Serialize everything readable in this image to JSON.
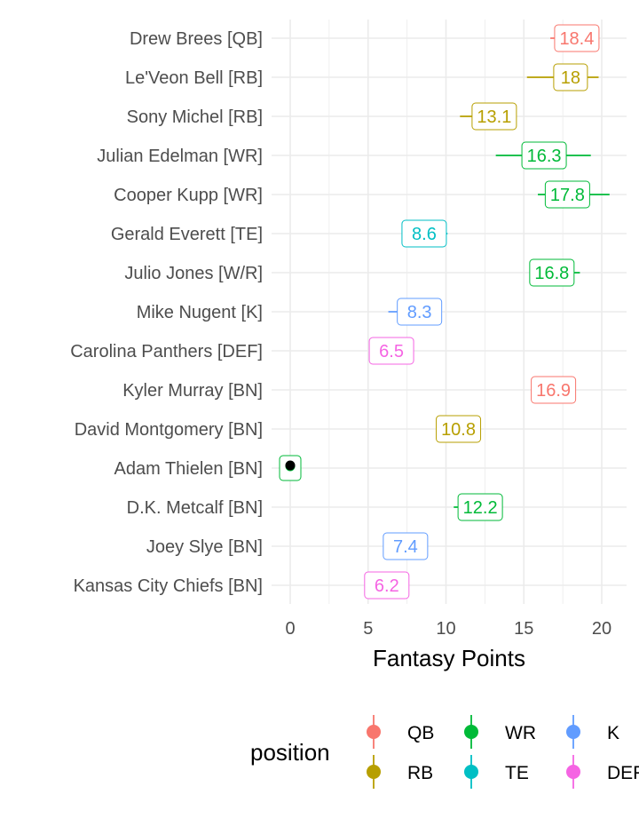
{
  "chart_data": {
    "type": "scatter",
    "xlabel": "Fantasy Points",
    "xlim": [
      -0.6,
      21.5
    ],
    "x_ticks": [
      0,
      5,
      10,
      15,
      20
    ],
    "x_tick_labels": [
      "0",
      "5",
      "10",
      "15",
      "20"
    ],
    "grid": true,
    "legend_placement": "bottom",
    "legend": {
      "title": "position",
      "entries": [
        {
          "name": "QB",
          "color": "#F8766D"
        },
        {
          "name": "RB",
          "color": "#B79F00"
        },
        {
          "name": "WR",
          "color": "#00BA38"
        },
        {
          "name": "TE",
          "color": "#00BFC4"
        },
        {
          "name": "K",
          "color": "#619CFF"
        },
        {
          "name": "DEF",
          "color": "#F564E3"
        }
      ]
    },
    "players": [
      {
        "name": "Drew Brees [QB]",
        "position": "QB",
        "value": 18.4,
        "label": "18.4",
        "low": 16.7,
        "high": 19.4
      },
      {
        "name": "Le'Veon Bell [RB]",
        "position": "RB",
        "value": 18,
        "label": "18",
        "low": 15.2,
        "high": 19.8
      },
      {
        "name": "Sony Michel [RB]",
        "position": "RB",
        "value": 13.1,
        "label": "13.1",
        "low": 10.9,
        "high": 14.1
      },
      {
        "name": "Julian Edelman [WR]",
        "position": "WR",
        "value": 16.3,
        "label": "16.3",
        "low": 13.2,
        "high": 19.3
      },
      {
        "name": "Cooper Kupp [WR]",
        "position": "WR",
        "value": 17.8,
        "label": "17.8",
        "low": 15.9,
        "high": 20.5
      },
      {
        "name": "Gerald Everett [TE]",
        "position": "TE",
        "value": 8.6,
        "label": "8.6",
        "low": 7.8,
        "high": 10.1
      },
      {
        "name": "Julio Jones [W/R]",
        "position": "WR",
        "value": 16.8,
        "label": "16.8",
        "low": 15.6,
        "high": 18.6
      },
      {
        "name": "Mike Nugent [K]",
        "position": "K",
        "value": 8.3,
        "label": "8.3",
        "low": 6.3,
        "high": 8.9
      },
      {
        "name": "Carolina Panthers [DEF]",
        "position": "DEF",
        "value": 6.5,
        "label": "6.5",
        "low": 5.7,
        "high": 7.9
      },
      {
        "name": "Kyler Murray [BN]",
        "position": "QB",
        "value": 16.9,
        "label": "16.9",
        "low": 16.9,
        "high": 16.9
      },
      {
        "name": "David Montgomery [BN]",
        "position": "RB",
        "value": 10.8,
        "label": "10.8",
        "low": 10.8,
        "high": 10.8
      },
      {
        "name": "Adam Thielen [BN]",
        "position": "WR",
        "value": 0,
        "label": "",
        "low": 0,
        "high": 0
      },
      {
        "name": "D.K. Metcalf [BN]",
        "position": "WR",
        "value": 12.2,
        "label": "12.2",
        "low": 10.5,
        "high": 12.2
      },
      {
        "name": "Joey Slye [BN]",
        "position": "K",
        "value": 7.4,
        "label": "7.4",
        "low": 7.4,
        "high": 7.4
      },
      {
        "name": "Kansas City Chiefs [BN]",
        "position": "DEF",
        "value": 6.2,
        "label": "6.2",
        "low": 6.2,
        "high": 6.2
      }
    ]
  }
}
